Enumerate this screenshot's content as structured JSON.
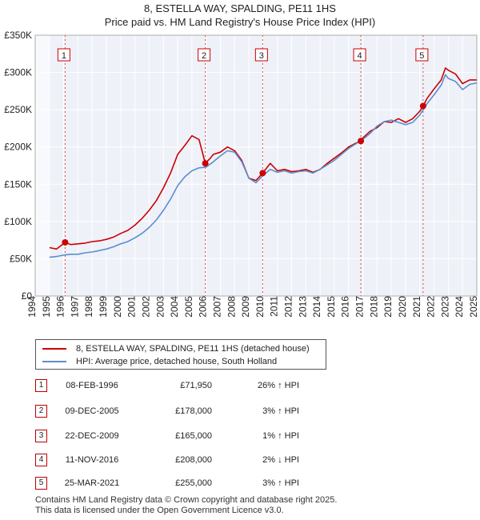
{
  "header": {
    "title": "8, ESTELLA WAY, SPALDING, PE11 1HS",
    "subtitle": "Price paid vs. HM Land Registry's House Price Index (HPI)"
  },
  "chart_data": {
    "type": "line",
    "title": "8, ESTELLA WAY, SPALDING, PE11 1HS",
    "subtitle": "Price paid vs. HM Land Registry's House Price Index (HPI)",
    "xlabel": "",
    "ylabel": "",
    "xlim": [
      1994,
      2025
    ],
    "ylim": [
      0,
      350000
    ],
    "y_ticks": [
      0,
      50000,
      100000,
      150000,
      200000,
      250000,
      300000,
      350000
    ],
    "y_tick_labels": [
      "£0",
      "£50K",
      "£100K",
      "£150K",
      "£200K",
      "£250K",
      "£300K",
      "£350K"
    ],
    "x_ticks": [
      1994,
      1995,
      1996,
      1997,
      1998,
      1999,
      2000,
      2001,
      2002,
      2003,
      2004,
      2005,
      2006,
      2007,
      2008,
      2009,
      2010,
      2011,
      2012,
      2013,
      2014,
      2015,
      2016,
      2017,
      2018,
      2019,
      2020,
      2021,
      2022,
      2023,
      2024,
      2025
    ],
    "grid": true,
    "series": [
      {
        "name": "8, ESTELLA WAY, SPALDING, PE11 1HS (detached house)",
        "color": "#cc0000",
        "x": [
          1995.0,
          1995.5,
          1996.1,
          1996.5,
          1997.0,
          1997.5,
          1998.0,
          1998.5,
          1999.0,
          1999.5,
          2000.0,
          2000.5,
          2001.0,
          2001.5,
          2002.0,
          2002.5,
          2003.0,
          2003.5,
          2004.0,
          2004.5,
          2005.0,
          2005.5,
          2005.94,
          2006.3,
          2006.5,
          2007.0,
          2007.5,
          2008.0,
          2008.5,
          2009.0,
          2009.5,
          2009.97,
          2010.5,
          2011.0,
          2011.5,
          2012.0,
          2012.5,
          2013.0,
          2013.5,
          2014.0,
          2014.5,
          2015.0,
          2015.5,
          2016.0,
          2016.5,
          2016.86,
          2017.0,
          2017.5,
          2018.0,
          2018.5,
          2019.0,
          2019.5,
          2020.0,
          2020.5,
          2021.0,
          2021.23,
          2021.5,
          2022.0,
          2022.5,
          2022.8,
          2023.0,
          2023.5,
          2024.0,
          2024.5,
          2025.0
        ],
        "y": [
          65000,
          63000,
          71950,
          69000,
          70000,
          71000,
          73000,
          74000,
          76000,
          79000,
          84000,
          88000,
          95000,
          104000,
          115000,
          128000,
          145000,
          165000,
          190000,
          202000,
          215000,
          210000,
          178000,
          185000,
          190000,
          193000,
          200000,
          195000,
          182000,
          158000,
          155000,
          165000,
          178000,
          168000,
          170000,
          167000,
          168000,
          170000,
          166000,
          170000,
          178000,
          185000,
          192000,
          200000,
          205000,
          208000,
          212000,
          221000,
          226000,
          234000,
          233000,
          238000,
          233000,
          238000,
          248000,
          255000,
          265000,
          278000,
          290000,
          306000,
          303000,
          298000,
          285000,
          290000,
          290000
        ]
      },
      {
        "name": "HPI: Average price, detached house, South Holland",
        "color": "#5b8fd0",
        "x": [
          1995.0,
          1995.5,
          1996.0,
          1996.5,
          1997.0,
          1997.5,
          1998.0,
          1998.5,
          1999.0,
          1999.5,
          2000.0,
          2000.5,
          2001.0,
          2001.5,
          2002.0,
          2002.5,
          2003.0,
          2003.5,
          2004.0,
          2004.5,
          2005.0,
          2005.5,
          2006.0,
          2006.5,
          2007.0,
          2007.5,
          2008.0,
          2008.5,
          2009.0,
          2009.5,
          2010.0,
          2010.5,
          2011.0,
          2011.5,
          2012.0,
          2012.5,
          2013.0,
          2013.5,
          2014.0,
          2014.5,
          2015.0,
          2015.5,
          2016.0,
          2016.5,
          2017.0,
          2017.5,
          2018.0,
          2018.5,
          2019.0,
          2019.5,
          2020.0,
          2020.5,
          2021.0,
          2021.5,
          2022.0,
          2022.5,
          2022.8,
          2023.0,
          2023.5,
          2024.0,
          2024.5,
          2025.0
        ],
        "y": [
          52000,
          53000,
          55000,
          56000,
          56000,
          58000,
          59000,
          61000,
          63000,
          66000,
          70000,
          73000,
          78000,
          84000,
          92000,
          102000,
          115000,
          130000,
          148000,
          160000,
          168000,
          172000,
          173000,
          180000,
          188000,
          195000,
          193000,
          180000,
          158000,
          152000,
          162000,
          170000,
          166000,
          168000,
          165000,
          167000,
          168000,
          165000,
          170000,
          176000,
          182000,
          190000,
          198000,
          204000,
          210000,
          218000,
          228000,
          234000,
          236000,
          233000,
          230000,
          233000,
          243000,
          258000,
          270000,
          283000,
          297000,
          292000,
          288000,
          277000,
          284000,
          286000
        ]
      }
    ],
    "sales": [
      {
        "num": "1",
        "x": 1996.1,
        "y": 71950
      },
      {
        "num": "2",
        "x": 2005.94,
        "y": 178000
      },
      {
        "num": "3",
        "x": 2009.97,
        "y": 165000
      },
      {
        "num": "4",
        "x": 2016.86,
        "y": 208000
      },
      {
        "num": "5",
        "x": 2021.23,
        "y": 255000
      }
    ]
  },
  "legend": {
    "items": [
      {
        "label": "8, ESTELLA WAY, SPALDING, PE11 1HS (detached house)",
        "color": "#cc0000"
      },
      {
        "label": "HPI: Average price, detached house, South Holland",
        "color": "#5b8fd0"
      }
    ]
  },
  "sales_table": [
    {
      "num": "1",
      "date": "08-FEB-1996",
      "price": "£71,950",
      "hpi": "26% ↑ HPI"
    },
    {
      "num": "2",
      "date": "09-DEC-2005",
      "price": "£178,000",
      "hpi": "3% ↑ HPI"
    },
    {
      "num": "3",
      "date": "22-DEC-2009",
      "price": "£165,000",
      "hpi": "1% ↑ HPI"
    },
    {
      "num": "4",
      "date": "11-NOV-2016",
      "price": "£208,000",
      "hpi": "2% ↓ HPI"
    },
    {
      "num": "5",
      "date": "25-MAR-2021",
      "price": "£255,000",
      "hpi": "3% ↑ HPI"
    }
  ],
  "footer": {
    "line1": "Contains HM Land Registry data © Crown copyright and database right 2025.",
    "line2": "This data is licensed under the Open Government Licence v3.0."
  }
}
